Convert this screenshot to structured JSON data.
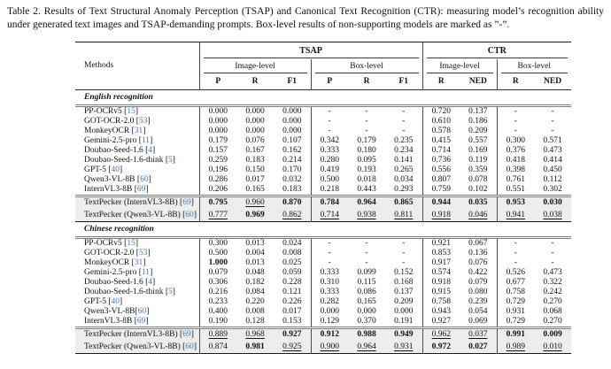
{
  "page": {
    "cite_color": "#3a78c2",
    "highlight_bg": "#ededed",
    "text_color": "#111111",
    "background": "#ffffff"
  },
  "caption": {
    "label": "Table 2.",
    "body": "Results of Text Structural Anomaly Perception (TSAP) and Canonical Text Recognition (CTR): measuring model’s recognition ability under generated text images and TSAP-demanding prompts. Box-level results of non-supporting models are marked as ”-”."
  },
  "table": {
    "col_headers": {
      "methods": "Methods",
      "tsap": "TSAP",
      "ctr": "CTR",
      "tsap_image": "Image-level",
      "tsap_box": "Box-level",
      "ctr_image": "Image-level",
      "ctr_box": "Box-level",
      "metrics": [
        "P",
        "R",
        "F1",
        "P",
        "R",
        "F1",
        "R",
        "NED",
        "R",
        "NED"
      ]
    },
    "sections": [
      {
        "title": "English recognition",
        "rows": [
          {
            "name": "PP-OCRv5",
            "cite": "15",
            "values": [
              "0.000",
              "0.000",
              "0.000",
              "-",
              "-",
              "-",
              "0.720",
              "0.137",
              "-",
              "-"
            ]
          },
          {
            "name": "GOT-OCR-2.0",
            "cite": "53",
            "values": [
              "0.000",
              "0.000",
              "0.000",
              "-",
              "-",
              "-",
              "0.610",
              "0.186",
              "-",
              "-"
            ]
          },
          {
            "name": "MonkeyOCR",
            "cite": "31",
            "values": [
              "0.000",
              "0.000",
              "0.000",
              "-",
              "-",
              "-",
              "0.578",
              "0.209",
              "-",
              "-"
            ]
          },
          {
            "name": "Gemini-2.5-pro",
            "cite": "11",
            "values": [
              "0.179",
              "0.076",
              "0.107",
              "0.342",
              "0.179",
              "0.235",
              "0.415",
              "0.557",
              "0.300",
              "0.571"
            ]
          },
          {
            "name": "Doubao-Seed-1.6",
            "cite": "4",
            "values": [
              "0.157",
              "0.167",
              "0.162",
              "0.333",
              "0.180",
              "0.234",
              "0.714",
              "0.169",
              "0.376",
              "0.473"
            ]
          },
          {
            "name": "Doubao-Seed-1.6-think",
            "cite": "5",
            "values": [
              "0.259",
              "0.183",
              "0.214",
              "0.280",
              "0.095",
              "0.141",
              "0.736",
              "0.119",
              "0.418",
              "0.414"
            ]
          },
          {
            "name": "GPT-5",
            "cite": "40",
            "values": [
              "0.196",
              "0.150",
              "0.170",
              "0.419",
              "0.193",
              "0.265",
              "0.556",
              "0.359",
              "0.398",
              "0.450"
            ]
          },
          {
            "name": "Qwen3-VL-8B",
            "cite": "60",
            "values": [
              "0.286",
              "0.017",
              "0.032",
              "0.500",
              "0.018",
              "0.034",
              "0.807",
              "0.078",
              "0.761",
              "0.112"
            ]
          },
          {
            "name": "InternVL3-8B",
            "cite": "69",
            "values": [
              "0.206",
              "0.165",
              "0.183",
              "0.218",
              "0.443",
              "0.293",
              "0.759",
              "0.102",
              "0.551",
              "0.302"
            ]
          }
        ],
        "highlight_rows": [
          {
            "name": "TextPecker (InternVL3-8B)",
            "cite": "69",
            "values": [
              "0.795",
              "0.960",
              "0.870",
              "0.784",
              "0.964",
              "0.865",
              "0.944",
              "0.035",
              "0.953",
              "0.030"
            ],
            "styles": [
              "b",
              "u",
              "b",
              "b",
              "b",
              "b",
              "b",
              "b",
              "b",
              "b"
            ]
          },
          {
            "name": "TextPecker (Qwen3-VL-8B)",
            "cite": "60",
            "values": [
              "0.777",
              "0.969",
              "0.862",
              "0.714",
              "0.938",
              "0.811",
              "0.918",
              "0.046",
              "0.941",
              "0.038"
            ],
            "styles": [
              "u",
              "b",
              "u",
              "u",
              "u",
              "u",
              "u",
              "u",
              "u",
              "u"
            ]
          }
        ]
      },
      {
        "title": "Chinese recognition",
        "rows": [
          {
            "name": "PP-OCRv5",
            "cite": "15",
            "values": [
              "0.300",
              "0.013",
              "0.024",
              "-",
              "-",
              "-",
              "0.921",
              "0.067",
              "-",
              "-"
            ]
          },
          {
            "name": "GOT-OCR-2.0",
            "cite": "53",
            "values": [
              "0.500",
              "0.004",
              "0.008",
              "-",
              "-",
              "-",
              "0.853",
              "0.136",
              "-",
              "-"
            ]
          },
          {
            "name": "MonkeyOCR",
            "cite": "31",
            "values": [
              "1.000",
              "0.013",
              "0.025",
              "-",
              "-",
              "-",
              "0.917",
              "0.076",
              "-",
              "-"
            ],
            "styles": [
              "b",
              "",
              "",
              "",
              "",
              "",
              "",
              "",
              "",
              ""
            ]
          },
          {
            "name": "Gemini-2.5-pro",
            "cite": "11",
            "values": [
              "0.079",
              "0.048",
              "0.059",
              "0.333",
              "0.099",
              "0.152",
              "0.574",
              "0.422",
              "0.526",
              "0.473"
            ]
          },
          {
            "name": "Doubao-Seed-1.6",
            "cite": "4",
            "values": [
              "0.306",
              "0.182",
              "0.228",
              "0.310",
              "0.115",
              "0.168",
              "0.918",
              "0.079",
              "0.677",
              "0.322"
            ]
          },
          {
            "name": "Doubao-Seed-1.6-think",
            "cite": "5",
            "values": [
              "0.216",
              "0.084",
              "0.121",
              "0.333",
              "0.086",
              "0.137",
              "0.915",
              "0.080",
              "0.758",
              "0.242"
            ]
          },
          {
            "name": "GPT-5",
            "cite": "40",
            "values": [
              "0.233",
              "0.220",
              "0.226",
              "0.282",
              "0.165",
              "0.209",
              "0.758",
              "0.239",
              "0.729",
              "0.270"
            ]
          },
          {
            "name": "Qwen3-VL-8B",
            "cite": "60",
            "gap": false,
            "values": [
              "0.400",
              "0.008",
              "0.017",
              "0.000",
              "0.000",
              "0.000",
              "0.943",
              "0.054",
              "0.931",
              "0.068"
            ]
          },
          {
            "name": "InternVL3-8B",
            "cite": "69",
            "values": [
              "0.190",
              "0.128",
              "0.153",
              "0.129",
              "0.370",
              "0.191",
              "0.927",
              "0.069",
              "0.729",
              "0.270"
            ]
          }
        ],
        "highlight_rows": [
          {
            "name": "TextPecker (InternVL3-8B)",
            "cite": "69",
            "values": [
              "0.889",
              "0.968",
              "0.927",
              "0.912",
              "0.988",
              "0.949",
              "0.962",
              "0.037",
              "0.991",
              "0.009"
            ],
            "styles": [
              "u",
              "u",
              "b",
              "b",
              "b",
              "b",
              "u",
              "u",
              "b",
              "b"
            ]
          },
          {
            "name": "TextPecker (Qwen3-VL-8B)",
            "cite": "60",
            "values": [
              "0.874",
              "0.981",
              "0.925",
              "0.900",
              "0.964",
              "0.931",
              "0.972",
              "0.027",
              "0.989",
              "0.010"
            ],
            "styles": [
              "",
              "b",
              "u",
              "u",
              "u",
              "u",
              "b",
              "b",
              "u",
              "u"
            ]
          }
        ]
      }
    ]
  }
}
